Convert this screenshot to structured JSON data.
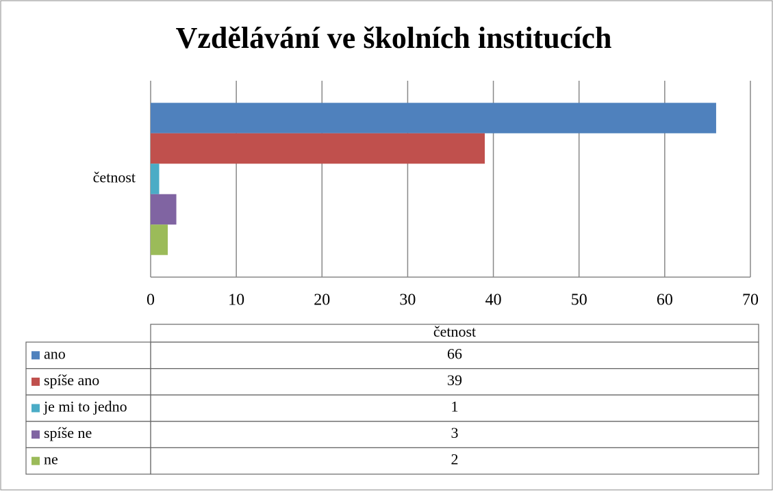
{
  "chart_data": {
    "type": "bar",
    "orientation": "horizontal",
    "title": "Vzdělávání ve školních institucích",
    "categories": [
      "četnost"
    ],
    "series": [
      {
        "name": "ano",
        "color": "#4f81bd",
        "values": [
          66
        ]
      },
      {
        "name": "spíše ano",
        "color": "#c0504d",
        "values": [
          39
        ]
      },
      {
        "name": "je mi to jedno",
        "color": "#4bacc6",
        "values": [
          1
        ]
      },
      {
        "name": "spíše ne",
        "color": "#8064a2",
        "values": [
          3
        ]
      },
      {
        "name": "ne",
        "color": "#9bbb59",
        "values": [
          2
        ]
      }
    ],
    "xlim": [
      0,
      70
    ],
    "xticks": [
      0,
      10,
      20,
      30,
      40,
      50,
      60,
      70
    ],
    "grid": true,
    "data_table": true
  }
}
